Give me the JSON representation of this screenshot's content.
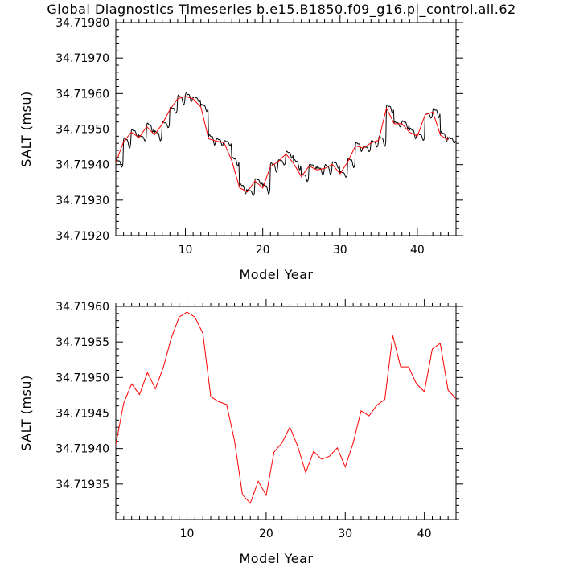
{
  "title": "Global Diagnostics Timeseries b.e15.B1850.f09_g16.pi_control.all.62",
  "chart_data": [
    {
      "type": "line",
      "xlabel": "Model Year",
      "ylabel": "SALT (msu)",
      "xlim": [
        1,
        45
      ],
      "ylim": [
        34.7192,
        34.7198
      ],
      "xticks": [
        10,
        20,
        30,
        40
      ],
      "yticks": [
        34.7192,
        34.7193,
        34.7194,
        34.7195,
        34.7196,
        34.7197,
        34.7198
      ],
      "ytick_labels": [
        "34.71920",
        "34.71930",
        "34.71940",
        "34.71950",
        "34.71960",
        "34.71970",
        "34.71980"
      ],
      "series": [
        {
          "color": "#000000",
          "kind": "monthly",
          "annual_means": [
            34.719406,
            34.719464,
            34.719491,
            34.719476,
            34.719507,
            34.719484,
            34.719514,
            34.719555,
            34.719585,
            34.719592,
            34.719585,
            34.719562,
            34.719473,
            34.719466,
            34.719462,
            34.719411,
            34.719335,
            34.719323,
            34.719354,
            34.719334,
            34.719395,
            34.719408,
            34.71943,
            34.719403,
            34.719366,
            34.719396,
            34.719385,
            34.719389,
            34.719401,
            34.719374,
            34.719408,
            34.719453,
            34.719446,
            34.719461,
            34.719469,
            34.719559,
            34.719515,
            34.719515,
            34.719491,
            34.71948,
            34.71954,
            34.719548,
            34.719482,
            34.71947
          ],
          "amplitude": 1.2e-05
        },
        {
          "color": "#ff0000",
          "kind": "annual",
          "x": [
            1,
            2,
            3,
            4,
            5,
            6,
            7,
            8,
            9,
            10,
            11,
            12,
            13,
            14,
            15,
            16,
            17,
            18,
            19,
            20,
            21,
            22,
            23,
            24,
            25,
            26,
            27,
            28,
            29,
            30,
            31,
            32,
            33,
            34,
            35,
            36,
            37,
            38,
            39,
            40,
            41,
            42,
            43,
            44
          ],
          "values": [
            34.719406,
            34.719464,
            34.719491,
            34.719476,
            34.719507,
            34.719484,
            34.719514,
            34.719555,
            34.719585,
            34.719592,
            34.719585,
            34.719562,
            34.719473,
            34.719466,
            34.719462,
            34.719411,
            34.719335,
            34.719323,
            34.719354,
            34.719334,
            34.719395,
            34.719408,
            34.71943,
            34.719403,
            34.719366,
            34.719396,
            34.719385,
            34.719389,
            34.719401,
            34.719374,
            34.719408,
            34.719453,
            34.719446,
            34.719461,
            34.719469,
            34.719559,
            34.719515,
            34.719515,
            34.719491,
            34.71948,
            34.71954,
            34.719548,
            34.719482,
            34.71947
          ]
        }
      ]
    },
    {
      "type": "line",
      "xlabel": "Model Year",
      "ylabel": "SALT (msu)",
      "xlim": [
        1,
        44
      ],
      "ylim": [
        34.7193,
        34.7196
      ],
      "xticks": [
        10,
        20,
        30,
        40
      ],
      "yticks": [
        34.71935,
        34.7194,
        34.71945,
        34.7195,
        34.71955,
        34.7196
      ],
      "ytick_labels": [
        "34.71935",
        "34.71940",
        "34.71945",
        "34.71950",
        "34.71955",
        "34.71960"
      ],
      "series": [
        {
          "color": "#ff0000",
          "kind": "annual",
          "x": [
            1,
            2,
            3,
            4,
            5,
            6,
            7,
            8,
            9,
            10,
            11,
            12,
            13,
            14,
            15,
            16,
            17,
            18,
            19,
            20,
            21,
            22,
            23,
            24,
            25,
            26,
            27,
            28,
            29,
            30,
            31,
            32,
            33,
            34,
            35,
            36,
            37,
            38,
            39,
            40,
            41,
            42,
            43,
            44
          ],
          "values": [
            34.719406,
            34.719464,
            34.719491,
            34.719476,
            34.719507,
            34.719484,
            34.719514,
            34.719555,
            34.719585,
            34.719592,
            34.719585,
            34.719562,
            34.719473,
            34.719466,
            34.719462,
            34.719411,
            34.719335,
            34.719323,
            34.719354,
            34.719334,
            34.719395,
            34.719408,
            34.71943,
            34.719403,
            34.719366,
            34.719396,
            34.719385,
            34.719389,
            34.719401,
            34.719374,
            34.719408,
            34.719453,
            34.719446,
            34.719461,
            34.719469,
            34.719559,
            34.719515,
            34.719515,
            34.719491,
            34.71948,
            34.71954,
            34.719548,
            34.719482,
            34.71947
          ]
        }
      ]
    }
  ]
}
